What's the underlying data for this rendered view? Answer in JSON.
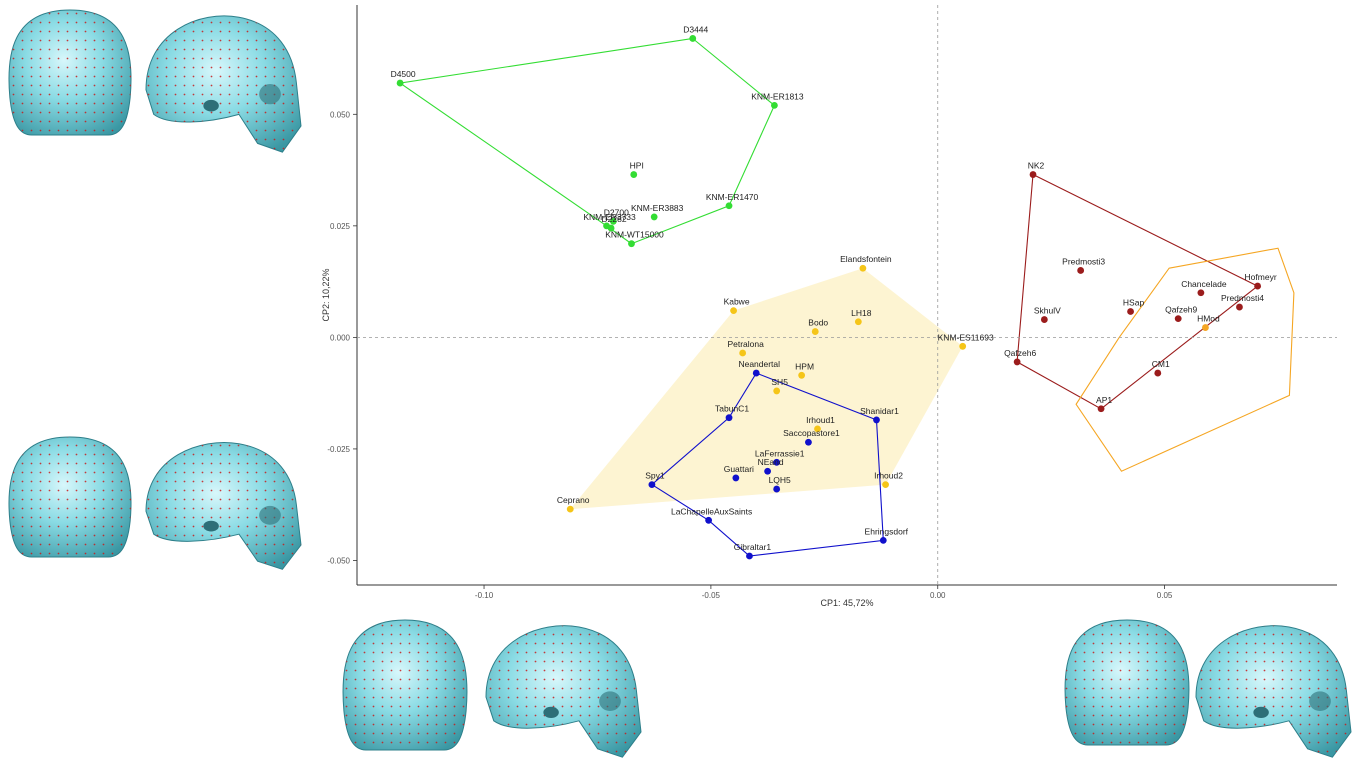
{
  "chart_data": {
    "type": "scatter",
    "xlabel": "CP1: 45,72%",
    "ylabel": "CP2: 10,22%",
    "xlim": [
      -0.128,
      0.088
    ],
    "ylim": [
      -0.0555,
      0.0745
    ],
    "xticks": [
      {
        "value": -0.1,
        "label": "-0.10"
      },
      {
        "value": -0.05,
        "label": "-0.05"
      },
      {
        "value": 0.0,
        "label": "0.00"
      },
      {
        "value": 0.05,
        "label": "0.05"
      }
    ],
    "yticks": [
      {
        "value": 0.05,
        "label": "0.050"
      },
      {
        "value": 0.025,
        "label": "0.025"
      },
      {
        "value": 0.0,
        "label": "0.000"
      },
      {
        "value": -0.025,
        "label": "-0.025"
      },
      {
        "value": -0.05,
        "label": "-0.050"
      }
    ],
    "reference_lines": {
      "x": 0,
      "y": 0
    },
    "grid": false,
    "series": [
      {
        "color": "#33dd33",
        "hull": "outline",
        "hull_order": [
          "D3444",
          "KNM-ER1813",
          "KNM-ER1470",
          "KNM-WT15000",
          "KNM-ER3733",
          "D4500"
        ],
        "points": [
          {
            "label": "D4500",
            "x": -0.1185,
            "y": 0.057
          },
          {
            "label": "D3444",
            "x": -0.054,
            "y": 0.067
          },
          {
            "label": "KNM-ER1813",
            "x": -0.036,
            "y": 0.052
          },
          {
            "label": "HPI",
            "x": -0.067,
            "y": 0.0365
          },
          {
            "label": "KNM-ER1470",
            "x": -0.046,
            "y": 0.0295
          },
          {
            "label": "D2700",
            "x": -0.0715,
            "y": 0.026
          },
          {
            "label": "KNM-ER3883",
            "x": -0.0625,
            "y": 0.027
          },
          {
            "label": "KNM-ER3733",
            "x": -0.073,
            "y": 0.025
          },
          {
            "label": "D2282",
            "x": -0.072,
            "y": 0.0245
          },
          {
            "label": "KNM-WT15000",
            "x": -0.0675,
            "y": 0.021
          }
        ]
      },
      {
        "color": "#f5c518",
        "hull": "filled",
        "hull_fill": "#fdf3d0",
        "hull_order": [
          "Elandsfontein",
          "KNM-ES11693",
          "Irhoud2",
          "Ceprano",
          "Kabwe"
        ],
        "points": [
          {
            "label": "Elandsfontein",
            "x": -0.0165,
            "y": 0.0155
          },
          {
            "label": "Kabwe",
            "x": -0.045,
            "y": 0.006
          },
          {
            "label": "LH18",
            "x": -0.0175,
            "y": 0.0035
          },
          {
            "label": "Bodo",
            "x": -0.027,
            "y": 0.0013
          },
          {
            "label": "KNM-ES11693",
            "x": 0.0055,
            "y": -0.002
          },
          {
            "label": "Petralona",
            "x": -0.043,
            "y": -0.0035
          },
          {
            "label": "HPM",
            "x": -0.03,
            "y": -0.0085
          },
          {
            "label": "SH5",
            "x": -0.0355,
            "y": -0.012
          },
          {
            "label": "Irhoud1",
            "x": -0.0265,
            "y": -0.0205
          },
          {
            "label": "Irhoud2",
            "x": -0.0115,
            "y": -0.033
          },
          {
            "label": "Ceprano",
            "x": -0.081,
            "y": -0.0385
          }
        ]
      },
      {
        "color": "#1010cc",
        "hull": "outline",
        "hull_order": [
          "Neandertal",
          "Shanidar1",
          "Ehringsdorf",
          "Gibraltar1",
          "LaChapelleAuxSaints",
          "Spy1",
          "TabunC1"
        ],
        "points": [
          {
            "label": "Neandertal",
            "x": -0.04,
            "y": -0.008
          },
          {
            "label": "TabunC1",
            "x": -0.046,
            "y": -0.018
          },
          {
            "label": "Shanidar1",
            "x": -0.0135,
            "y": -0.0185
          },
          {
            "label": "Saccopastore1",
            "x": -0.0285,
            "y": -0.0235
          },
          {
            "label": "LaFerrassie1",
            "x": -0.0355,
            "y": -0.028
          },
          {
            "label": "NEand",
            "x": -0.0375,
            "y": -0.03
          },
          {
            "label": "Guattari",
            "x": -0.0445,
            "y": -0.0315
          },
          {
            "label": "LQH5",
            "x": -0.0355,
            "y": -0.034
          },
          {
            "label": "Spy1",
            "x": -0.063,
            "y": -0.033
          },
          {
            "label": "LaChapelleAuxSaints",
            "x": -0.0505,
            "y": -0.041
          },
          {
            "label": "Ehringsdorf",
            "x": -0.012,
            "y": -0.0455
          },
          {
            "label": "Gibraltar1",
            "x": -0.0415,
            "y": -0.049
          }
        ]
      },
      {
        "color": "#9b1c1c",
        "hull": "outline",
        "hull_order": [
          "NK2",
          "Hofmeyr",
          "AP1",
          "Qafzeh6"
        ],
        "points": [
          {
            "label": "NK2",
            "x": 0.021,
            "y": 0.0365
          },
          {
            "label": "Predmosti3",
            "x": 0.0315,
            "y": 0.015
          },
          {
            "label": "Hofmeyr",
            "x": 0.0705,
            "y": 0.0115
          },
          {
            "label": "Chancelade",
            "x": 0.058,
            "y": 0.01
          },
          {
            "label": "HSap",
            "x": 0.0425,
            "y": 0.0058
          },
          {
            "label": "Qafzeh9",
            "x": 0.053,
            "y": 0.0042
          },
          {
            "label": "SkhulV",
            "x": 0.0235,
            "y": 0.004
          },
          {
            "label": "Predmosti4",
            "x": 0.0665,
            "y": 0.0068
          },
          {
            "label": "Qafzeh6",
            "x": 0.0175,
            "y": -0.0055
          },
          {
            "label": "CM1",
            "x": 0.0485,
            "y": -0.008
          },
          {
            "label": "AP1",
            "x": 0.036,
            "y": -0.016
          }
        ]
      },
      {
        "color": "#f5a623",
        "hull": "outline",
        "hull_order": [
          "p1",
          "p2",
          "p3",
          "p4",
          "p5",
          "p6",
          "p7"
        ],
        "hull_points": [
          {
            "x": 0.051,
            "y": 0.0155
          },
          {
            "x": 0.075,
            "y": 0.02
          },
          {
            "x": 0.0785,
            "y": 0.01
          },
          {
            "x": 0.0775,
            "y": -0.013
          },
          {
            "x": 0.0405,
            "y": -0.03
          },
          {
            "x": 0.0305,
            "y": -0.015
          },
          {
            "x": 0.04,
            "y": 0.0
          }
        ],
        "points": [
          {
            "label": "HMod",
            "x": 0.059,
            "y": 0.0022
          }
        ]
      }
    ],
    "label_offsets_note": ""
  },
  "skulls": [
    {
      "id": "top-left",
      "kind": "skull-pair"
    },
    {
      "id": "middle-left",
      "kind": "skull-pair"
    },
    {
      "id": "bottom-center",
      "kind": "skull-pair"
    },
    {
      "id": "bottom-right",
      "kind": "skull-pair"
    }
  ],
  "colors": {
    "skull": "#7ed3dc",
    "skull_shade": "#3f9aa6",
    "landmark": "#d62020"
  }
}
